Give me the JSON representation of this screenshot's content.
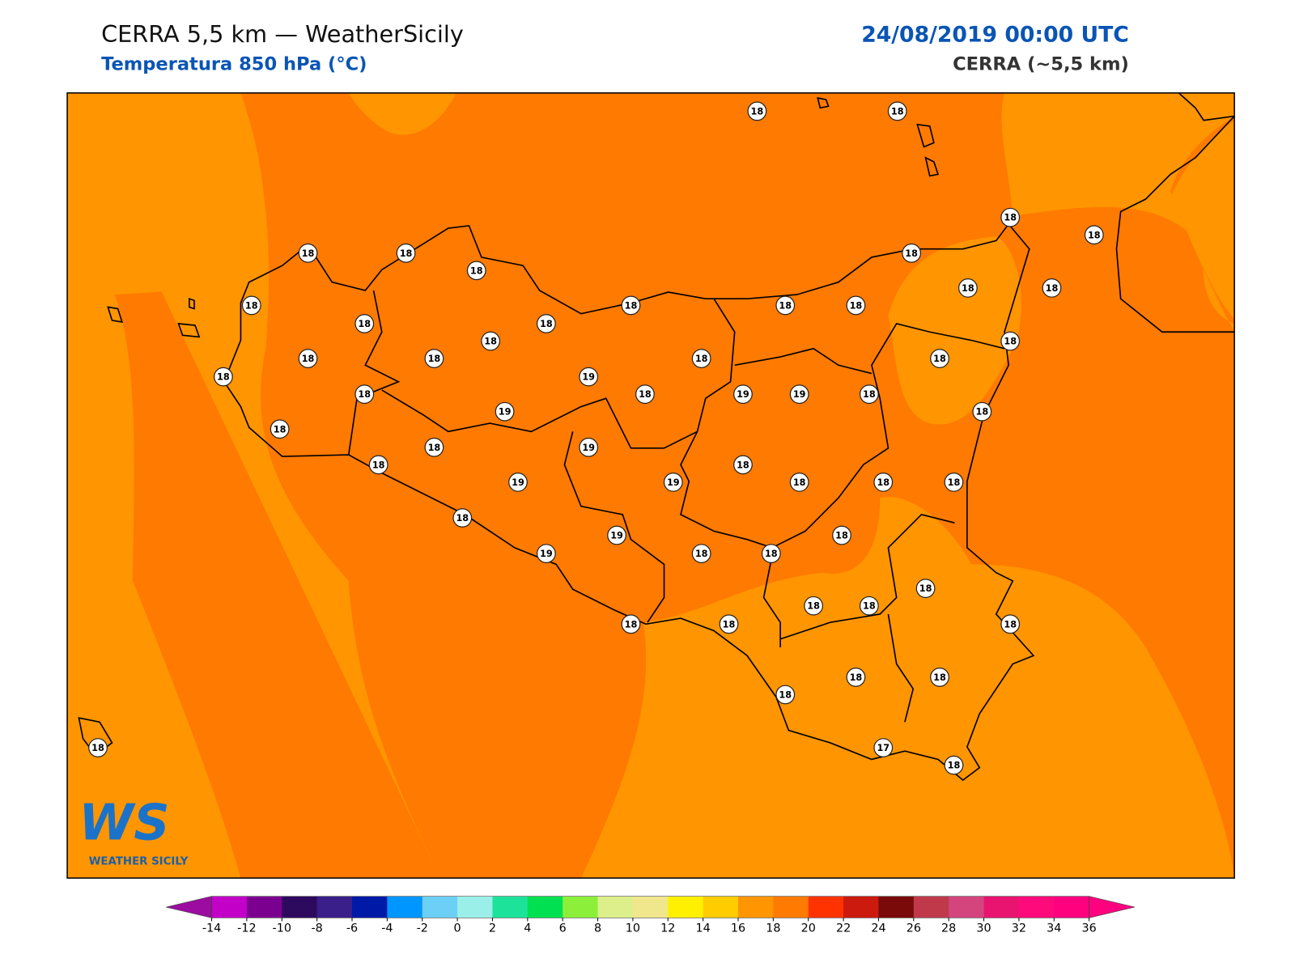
{
  "header": {
    "title": "CERRA 5,5 km — WeatherSicily",
    "subtitle": "Temperatura 850 hPa (°C)",
    "date": "24/08/2019 00:00 UTC",
    "model": "CERRA (~5,5 km)"
  },
  "stations": [
    18,
    18,
    18,
    18,
    18,
    18,
    18,
    18,
    18,
    18,
    18,
    18,
    18,
    18,
    18,
    18,
    18,
    18,
    18,
    18,
    18,
    18,
    18,
    19,
    18,
    18,
    19,
    19,
    18,
    19,
    18,
    18,
    18,
    19,
    18,
    18,
    19,
    19,
    18,
    18,
    18,
    18,
    18,
    19,
    19,
    18,
    18,
    18,
    18,
    18,
    18,
    18,
    18,
    18,
    18,
    18,
    18,
    17,
    18
  ],
  "colorbar": {
    "ticks": [
      -14,
      -12,
      -10,
      -8,
      -6,
      -4,
      -2,
      0,
      2,
      4,
      6,
      8,
      10,
      12,
      14,
      16,
      18,
      20,
      22,
      24,
      26,
      28,
      30,
      32,
      34,
      36
    ],
    "colors": [
      "#c300c8",
      "#7c0090",
      "#2e0a5e",
      "#3a1f8a",
      "#001aa8",
      "#0096ff",
      "#6ccff6",
      "#9af0e8",
      "#1de39a",
      "#00e050",
      "#8cf03a",
      "#dcef8a",
      "#f0e68c",
      "#fff000",
      "#ffcc00",
      "#ff9500",
      "#ff7a00",
      "#ff3300",
      "#cc1a0e",
      "#7a0a0a",
      "#c0394b",
      "#d4457e",
      "#e81470",
      "#ff0a7a",
      "#ff007f"
    ],
    "under_color": "#9c0ca0",
    "over_color": "#ff007f"
  },
  "logo": {
    "mark": "WS",
    "name": "WEATHER SICILY"
  }
}
